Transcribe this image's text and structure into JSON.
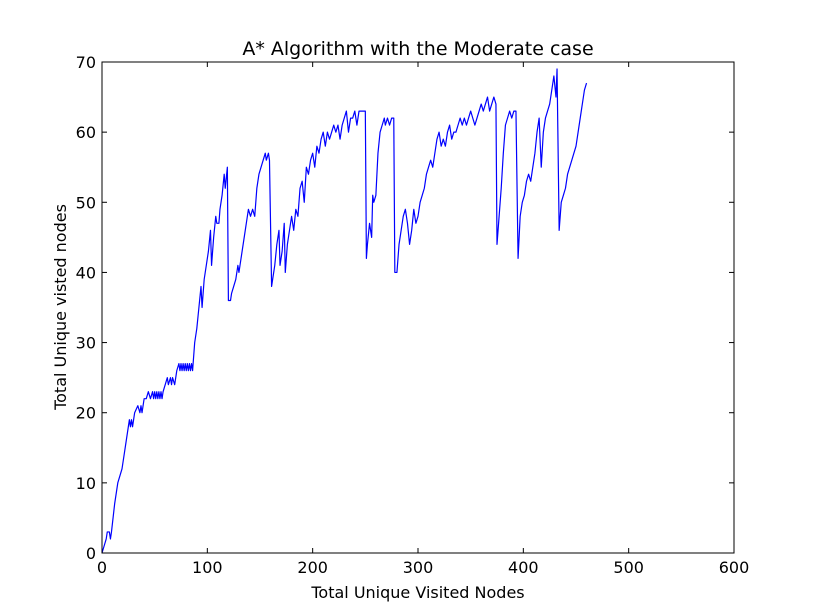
{
  "chart_data": {
    "type": "line",
    "title": "A* Algorithm with the Moderate case",
    "xlabel": "Total Unique Visited Nodes",
    "ylabel": "Total Unique visted nodes",
    "xlim": [
      0,
      600
    ],
    "ylim": [
      0,
      70
    ],
    "xticks": [
      0,
      100,
      200,
      300,
      400,
      500,
      600
    ],
    "yticks": [
      0,
      10,
      20,
      30,
      40,
      50,
      60,
      70
    ],
    "grid": false,
    "legend": "none",
    "series": [
      {
        "color": "#0000ff",
        "points": [
          [
            0,
            0
          ],
          [
            2,
            1
          ],
          [
            4,
            2
          ],
          [
            5,
            3
          ],
          [
            7,
            3
          ],
          [
            8,
            2
          ],
          [
            9,
            3
          ],
          [
            12,
            7
          ],
          [
            15,
            10
          ],
          [
            17,
            11
          ],
          [
            19,
            12
          ],
          [
            21,
            14
          ],
          [
            23,
            16
          ],
          [
            25,
            18
          ],
          [
            26,
            19
          ],
          [
            27,
            18
          ],
          [
            28,
            19
          ],
          [
            29,
            18
          ],
          [
            31,
            20
          ],
          [
            34,
            21
          ],
          [
            36,
            20
          ],
          [
            37,
            21
          ],
          [
            38,
            20
          ],
          [
            40,
            22
          ],
          [
            42,
            22
          ],
          [
            44,
            23
          ],
          [
            46,
            22
          ],
          [
            48,
            23
          ],
          [
            49,
            22
          ],
          [
            50,
            23
          ],
          [
            51,
            22
          ],
          [
            52,
            23
          ],
          [
            53,
            22
          ],
          [
            54,
            23
          ],
          [
            55,
            22
          ],
          [
            56,
            23
          ],
          [
            57,
            22
          ],
          [
            58,
            23
          ],
          [
            60,
            24
          ],
          [
            62,
            25
          ],
          [
            63,
            24
          ],
          [
            65,
            25
          ],
          [
            66,
            24
          ],
          [
            67,
            25
          ],
          [
            69,
            24
          ],
          [
            71,
            26
          ],
          [
            73,
            27
          ],
          [
            74,
            26
          ],
          [
            75,
            27
          ],
          [
            76,
            26
          ],
          [
            77,
            27
          ],
          [
            78,
            26
          ],
          [
            79,
            27
          ],
          [
            80,
            26
          ],
          [
            81,
            27
          ],
          [
            82,
            26
          ],
          [
            83,
            27
          ],
          [
            84,
            26
          ],
          [
            85,
            27
          ],
          [
            86,
            26
          ],
          [
            88,
            30
          ],
          [
            90,
            32
          ],
          [
            92,
            35
          ],
          [
            94,
            38
          ],
          [
            95,
            35
          ],
          [
            97,
            39
          ],
          [
            99,
            41
          ],
          [
            101,
            43
          ],
          [
            103,
            46
          ],
          [
            104,
            41
          ],
          [
            106,
            45
          ],
          [
            108,
            48
          ],
          [
            109,
            47
          ],
          [
            111,
            47
          ],
          [
            112,
            49
          ],
          [
            114,
            51
          ],
          [
            116,
            54
          ],
          [
            117,
            52
          ],
          [
            119,
            55
          ],
          [
            120,
            36
          ],
          [
            122,
            36
          ],
          [
            123,
            37
          ],
          [
            125,
            38
          ],
          [
            127,
            39
          ],
          [
            128,
            40
          ],
          [
            129,
            41
          ],
          [
            130,
            40
          ],
          [
            131,
            41
          ],
          [
            133,
            43
          ],
          [
            135,
            45
          ],
          [
            137,
            47
          ],
          [
            139,
            49
          ],
          [
            141,
            48
          ],
          [
            143,
            49
          ],
          [
            145,
            48
          ],
          [
            147,
            52
          ],
          [
            149,
            54
          ],
          [
            151,
            55
          ],
          [
            153,
            56
          ],
          [
            155,
            57
          ],
          [
            156,
            56
          ],
          [
            158,
            57
          ],
          [
            159,
            56
          ],
          [
            161,
            38
          ],
          [
            162,
            39
          ],
          [
            164,
            41
          ],
          [
            166,
            44
          ],
          [
            168,
            46
          ],
          [
            169,
            41
          ],
          [
            171,
            43
          ],
          [
            173,
            47
          ],
          [
            174,
            40
          ],
          [
            176,
            44
          ],
          [
            178,
            46
          ],
          [
            180,
            48
          ],
          [
            182,
            46
          ],
          [
            184,
            49
          ],
          [
            186,
            48
          ],
          [
            188,
            52
          ],
          [
            190,
            53
          ],
          [
            192,
            50
          ],
          [
            194,
            55
          ],
          [
            196,
            54
          ],
          [
            198,
            56
          ],
          [
            200,
            57
          ],
          [
            202,
            55
          ],
          [
            204,
            58
          ],
          [
            206,
            57
          ],
          [
            208,
            59
          ],
          [
            210,
            60
          ],
          [
            212,
            58
          ],
          [
            214,
            60
          ],
          [
            216,
            59
          ],
          [
            218,
            60
          ],
          [
            220,
            61
          ],
          [
            222,
            60
          ],
          [
            224,
            61
          ],
          [
            226,
            59
          ],
          [
            228,
            61
          ],
          [
            230,
            62
          ],
          [
            232,
            63
          ],
          [
            234,
            60
          ],
          [
            236,
            62
          ],
          [
            238,
            62
          ],
          [
            240,
            63
          ],
          [
            242,
            61
          ],
          [
            244,
            63
          ],
          [
            246,
            63
          ],
          [
            248,
            63
          ],
          [
            250,
            63
          ],
          [
            251,
            42
          ],
          [
            252,
            44
          ],
          [
            254,
            47
          ],
          [
            256,
            45
          ],
          [
            257,
            51
          ],
          [
            258,
            50
          ],
          [
            260,
            51
          ],
          [
            262,
            57
          ],
          [
            264,
            60
          ],
          [
            266,
            61
          ],
          [
            268,
            62
          ],
          [
            269,
            61
          ],
          [
            271,
            62
          ],
          [
            273,
            61
          ],
          [
            275,
            62
          ],
          [
            277,
            62
          ],
          [
            278,
            40
          ],
          [
            280,
            40
          ],
          [
            282,
            44
          ],
          [
            284,
            46
          ],
          [
            286,
            48
          ],
          [
            288,
            49
          ],
          [
            290,
            47
          ],
          [
            292,
            44
          ],
          [
            294,
            46
          ],
          [
            296,
            49
          ],
          [
            298,
            47
          ],
          [
            300,
            48
          ],
          [
            302,
            50
          ],
          [
            304,
            51
          ],
          [
            306,
            52
          ],
          [
            308,
            54
          ],
          [
            310,
            55
          ],
          [
            312,
            56
          ],
          [
            314,
            55
          ],
          [
            316,
            57
          ],
          [
            318,
            59
          ],
          [
            320,
            60
          ],
          [
            322,
            58
          ],
          [
            324,
            59
          ],
          [
            326,
            58
          ],
          [
            328,
            60
          ],
          [
            330,
            61
          ],
          [
            332,
            59
          ],
          [
            334,
            60
          ],
          [
            336,
            60
          ],
          [
            338,
            61
          ],
          [
            340,
            62
          ],
          [
            342,
            61
          ],
          [
            344,
            62
          ],
          [
            346,
            61
          ],
          [
            348,
            62
          ],
          [
            350,
            63
          ],
          [
            352,
            62
          ],
          [
            354,
            61
          ],
          [
            356,
            62
          ],
          [
            358,
            63
          ],
          [
            360,
            64
          ],
          [
            362,
            63
          ],
          [
            364,
            64
          ],
          [
            366,
            65
          ],
          [
            368,
            63
          ],
          [
            370,
            64
          ],
          [
            372,
            65
          ],
          [
            374,
            64
          ],
          [
            375,
            44
          ],
          [
            377,
            48
          ],
          [
            379,
            52
          ],
          [
            381,
            57
          ],
          [
            383,
            61
          ],
          [
            385,
            62
          ],
          [
            387,
            63
          ],
          [
            389,
            62
          ],
          [
            391,
            63
          ],
          [
            393,
            63
          ],
          [
            395,
            42
          ],
          [
            397,
            48
          ],
          [
            399,
            50
          ],
          [
            401,
            51
          ],
          [
            403,
            53
          ],
          [
            405,
            54
          ],
          [
            407,
            53
          ],
          [
            409,
            55
          ],
          [
            411,
            57
          ],
          [
            413,
            60
          ],
          [
            415,
            62
          ],
          [
            417,
            55
          ],
          [
            419,
            60
          ],
          [
            421,
            62
          ],
          [
            423,
            63
          ],
          [
            425,
            64
          ],
          [
            427,
            66
          ],
          [
            429,
            68
          ],
          [
            431,
            65
          ],
          [
            432,
            69
          ],
          [
            434,
            46
          ],
          [
            436,
            50
          ],
          [
            438,
            51
          ],
          [
            440,
            52
          ],
          [
            442,
            54
          ],
          [
            444,
            55
          ],
          [
            446,
            56
          ],
          [
            448,
            57
          ],
          [
            450,
            58
          ],
          [
            452,
            60
          ],
          [
            454,
            62
          ],
          [
            456,
            64
          ],
          [
            458,
            66
          ],
          [
            460,
            67
          ]
        ]
      }
    ]
  }
}
